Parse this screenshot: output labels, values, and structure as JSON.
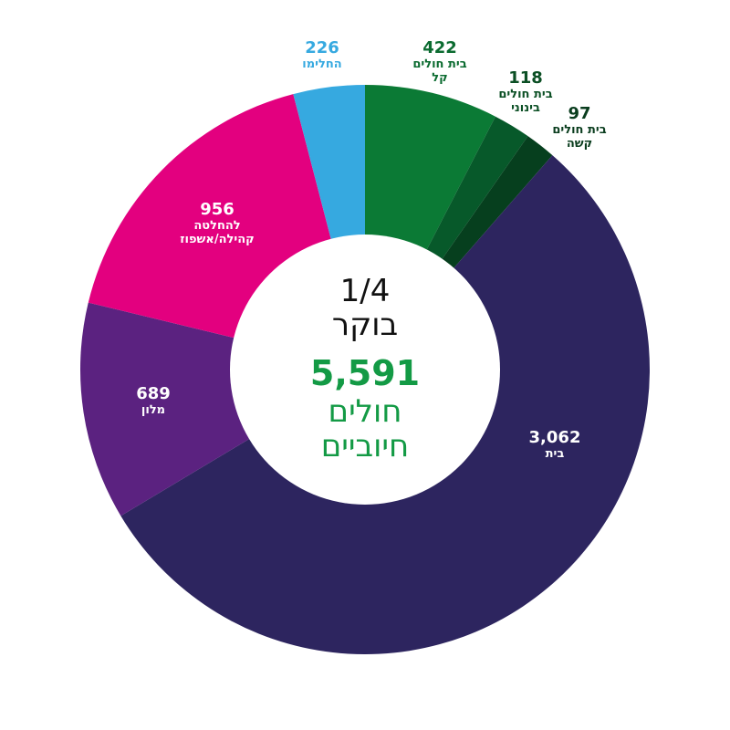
{
  "chart_data": {
    "type": "pie",
    "title_lines": [
      "1/4",
      "בוקר"
    ],
    "total": "5,591",
    "total_caption": [
      "חולים",
      "חיוביים"
    ],
    "slices": [
      {
        "value": 422,
        "value_label": "422",
        "label_lines": [
          "בית חולים",
          "קל"
        ],
        "color": "#0b7a35",
        "label_color": "#0b6b30"
      },
      {
        "value": 118,
        "value_label": "118",
        "label_lines": [
          "בית חולים",
          "בינוני"
        ],
        "color": "#07592a",
        "label_color": "#0b4f24"
      },
      {
        "value": 97,
        "value_label": "97",
        "label_lines": [
          "בית חולים",
          "קשה"
        ],
        "color": "#063f1e",
        "label_color": "#0a3d1e"
      },
      {
        "value": 3062,
        "value_label": "3,062",
        "label_lines": [
          "בית"
        ],
        "color": "#2d255f",
        "label_color": "#ffffff"
      },
      {
        "value": 689,
        "value_label": "689",
        "label_lines": [
          "מלון"
        ],
        "color": "#5b2280",
        "label_color": "#ffffff"
      },
      {
        "value": 956,
        "value_label": "956",
        "label_lines": [
          "להחלטה",
          "קהילה/אשפוז"
        ],
        "color": "#e3007f",
        "label_color": "#ffffff"
      },
      {
        "value": 226,
        "value_label": "226",
        "label_lines": [
          "החלימו"
        ],
        "color": "#36a9e0",
        "label_color": "#36a9e0"
      }
    ]
  },
  "colors": {
    "total_green": "#139a45",
    "center_fill": "#ffffff"
  }
}
